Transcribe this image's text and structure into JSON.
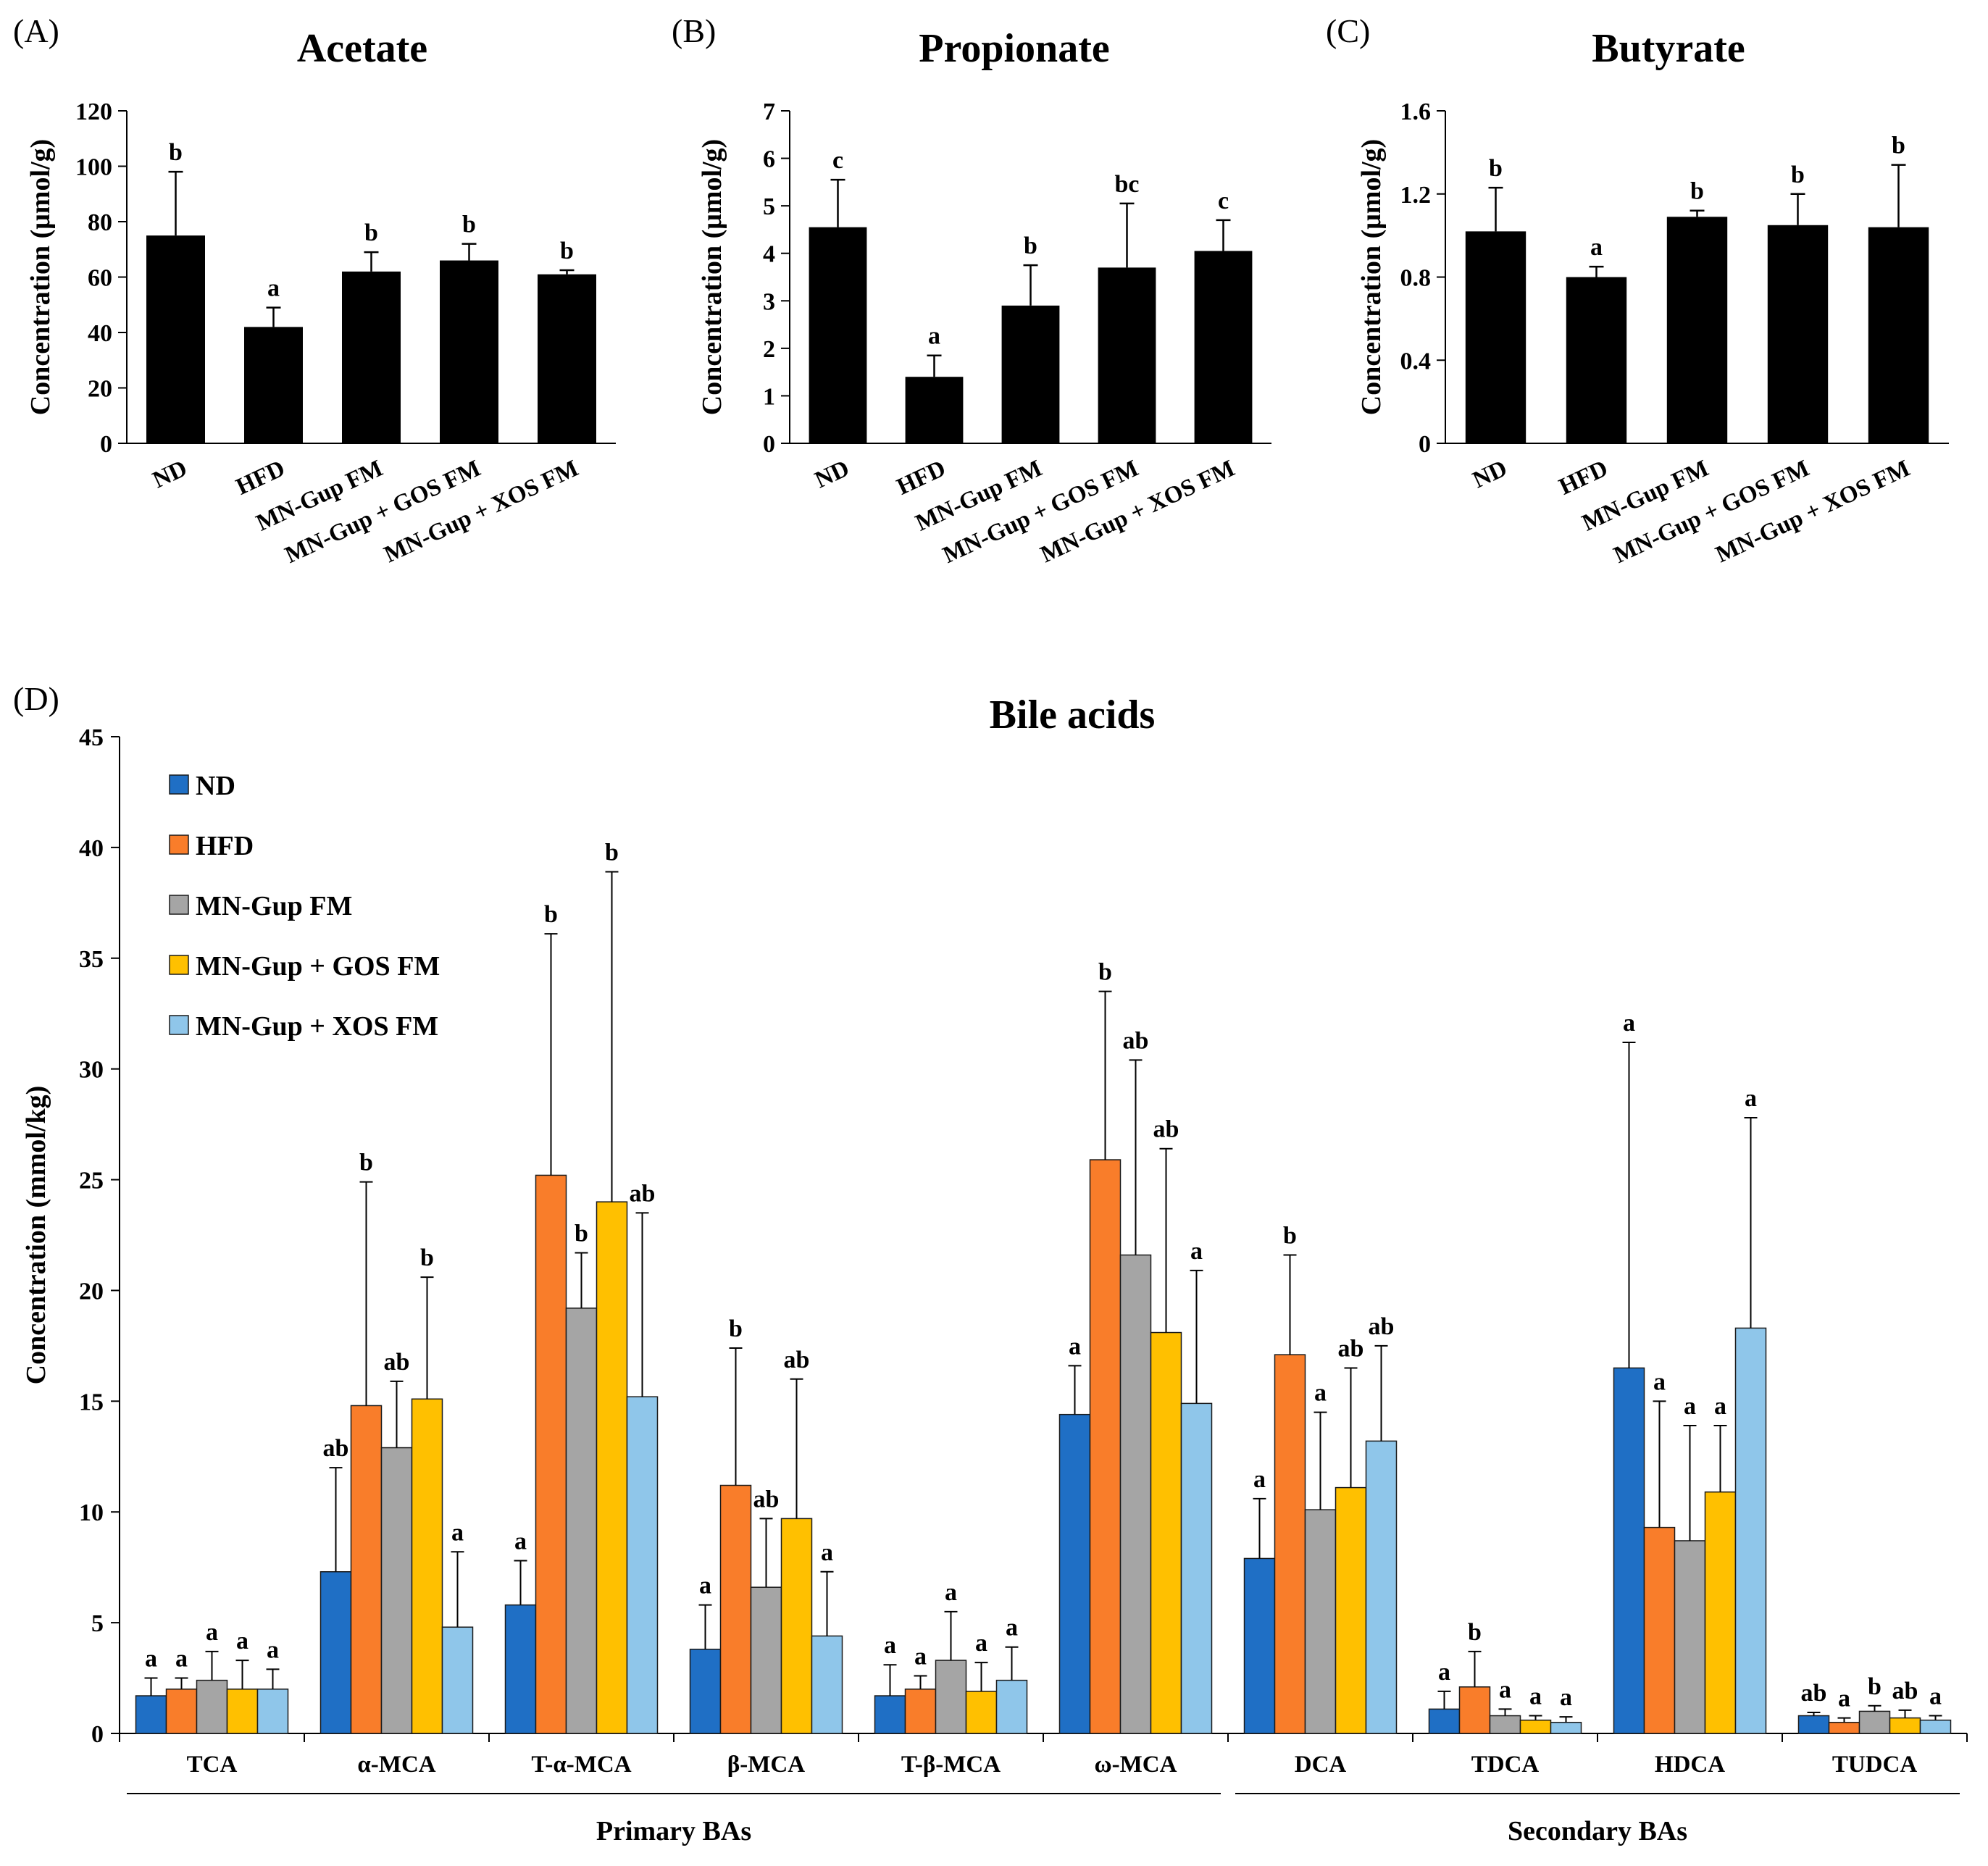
{
  "chart_data": [
    {
      "panel": "(A)",
      "type": "bar",
      "title": "Acetate",
      "ylabel": "Concentration (μmol/g)",
      "ylim": [
        0,
        120
      ],
      "yticks": [
        "0",
        "20",
        "40",
        "60",
        "80",
        "100",
        "120"
      ],
      "categories": [
        "ND",
        "HFD",
        "MN-Gup FM",
        "MN-Gup + GOS FM",
        "MN-Gup + XOS FM"
      ],
      "values": [
        75,
        42,
        62,
        66,
        61
      ],
      "errors": [
        23,
        7,
        7,
        6,
        1.5
      ],
      "letters": [
        "b",
        "a",
        "b",
        "b",
        "b"
      ],
      "color": "#000000"
    },
    {
      "panel": "(B)",
      "type": "bar",
      "title": "Propionate",
      "ylabel": "Concentration (μmol/g)",
      "ylim": [
        0,
        7
      ],
      "yticks": [
        "0",
        "1",
        "2",
        "3",
        "4",
        "5",
        "6",
        "7"
      ],
      "categories": [
        "ND",
        "HFD",
        "MN-Gup FM",
        "MN-Gup + GOS FM",
        "MN-Gup + XOS FM"
      ],
      "values": [
        4.55,
        1.4,
        2.9,
        3.7,
        4.05
      ],
      "errors": [
        1.0,
        0.45,
        0.85,
        1.35,
        0.65
      ],
      "letters": [
        "c",
        "a",
        "b",
        "bc",
        "c"
      ],
      "color": "#000000"
    },
    {
      "panel": "(C)",
      "type": "bar",
      "title": "Butyrate",
      "ylabel": "Concentration (μmol/g)",
      "ylim": [
        0,
        1.6
      ],
      "yticks": [
        "0",
        "0.4",
        "0.8",
        "1.2",
        "1.6"
      ],
      "categories": [
        "ND",
        "HFD",
        "MN-Gup FM",
        "MN-Gup + GOS FM",
        "MN-Gup + XOS FM"
      ],
      "values": [
        1.02,
        0.8,
        1.09,
        1.05,
        1.04
      ],
      "errors": [
        0.21,
        0.05,
        0.03,
        0.15,
        0.3
      ],
      "letters": [
        "b",
        "a",
        "b",
        "b",
        "b"
      ],
      "color": "#000000"
    },
    {
      "panel": "(D)",
      "type": "bar",
      "title": "Bile acids",
      "ylabel": "Concentration (mmol/kg)",
      "ylim": [
        0,
        45
      ],
      "yticks": [
        "0",
        "5",
        "10",
        "15",
        "20",
        "25",
        "30",
        "35",
        "40",
        "45"
      ],
      "categories": [
        "TCA",
        "α-MCA",
        "T-α-MCA",
        "β-MCA",
        "T-β-MCA",
        "ω-MCA",
        "DCA",
        "TDCA",
        "HDCA",
        "TUDCA"
      ],
      "groups": [
        {
          "label": "Primary BAs",
          "from": 0,
          "to": 5
        },
        {
          "label": "Secondary  BAs",
          "from": 6,
          "to": 9
        }
      ],
      "legend_position": "top-left",
      "series": [
        {
          "name": "ND",
          "color": "#1f6fc5",
          "values": [
            1.7,
            7.3,
            5.8,
            3.8,
            1.7,
            14.4,
            7.9,
            1.1,
            16.5,
            0.8
          ],
          "errors": [
            0.8,
            4.7,
            2.0,
            2.0,
            1.4,
            2.2,
            2.7,
            0.8,
            14.7,
            0.15
          ],
          "letters": [
            "a",
            "ab",
            "a",
            "a",
            "a",
            "a",
            "a",
            "a",
            "a",
            "ab"
          ]
        },
        {
          "name": "HFD",
          "color": "#f97d2a",
          "values": [
            2.0,
            14.8,
            25.2,
            11.2,
            2.0,
            25.9,
            17.1,
            2.1,
            9.3,
            0.5
          ],
          "errors": [
            0.5,
            10.1,
            10.9,
            6.2,
            0.6,
            7.6,
            4.5,
            1.6,
            5.7,
            0.2
          ],
          "letters": [
            "a",
            "b",
            "b",
            "b",
            "a",
            "b",
            "b",
            "b",
            "a",
            "a"
          ]
        },
        {
          "name": "MN-Gup FM",
          "color": "#a5a5a5",
          "values": [
            2.4,
            12.9,
            19.2,
            6.6,
            3.3,
            21.6,
            10.1,
            0.8,
            8.7,
            1.0
          ],
          "errors": [
            1.3,
            3.0,
            2.5,
            3.1,
            2.2,
            8.8,
            4.4,
            0.3,
            5.2,
            0.25
          ],
          "letters": [
            "a",
            "ab",
            "b",
            "ab",
            "a",
            "ab",
            "a",
            "a",
            "a",
            "b"
          ]
        },
        {
          "name": "MN-Gup + GOS FM",
          "color": "#ffc000",
          "values": [
            2.0,
            15.1,
            24.0,
            9.7,
            1.9,
            18.1,
            11.1,
            0.6,
            10.9,
            0.7
          ],
          "errors": [
            1.3,
            5.5,
            14.9,
            6.3,
            1.3,
            8.3,
            5.4,
            0.2,
            3.0,
            0.35
          ],
          "letters": [
            "a",
            "b",
            "b",
            "ab",
            "a",
            "ab",
            "ab",
            "a",
            "a",
            "ab"
          ]
        },
        {
          "name": "MN-Gup + XOS FM",
          "color": "#8fc6ea",
          "values": [
            2.0,
            4.8,
            15.2,
            4.4,
            2.4,
            14.9,
            13.2,
            0.5,
            18.3,
            0.6
          ],
          "errors": [
            0.9,
            3.4,
            8.3,
            2.9,
            1.5,
            6.0,
            4.3,
            0.25,
            9.5,
            0.2
          ],
          "letters": [
            "a",
            "a",
            "ab",
            "a",
            "a",
            "a",
            "ab",
            "a",
            "a",
            "a"
          ]
        }
      ]
    }
  ]
}
